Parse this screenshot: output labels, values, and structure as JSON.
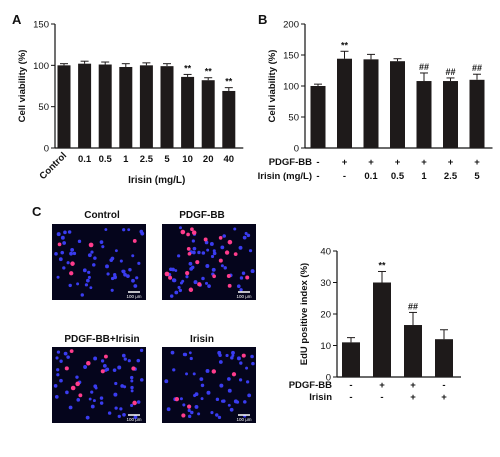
{
  "figure": {
    "panel_a_label": "A",
    "panel_b_label": "B",
    "panel_c_label": "C",
    "micro_titles": [
      "Control",
      "PDGF-BB",
      "PDGF-BB+Irisin",
      "Irisin"
    ],
    "scale_bar_text": "100 μm"
  },
  "colors": {
    "bar": "#1e1a1a",
    "axis": "#111111",
    "micro_bg": "#05051c",
    "nuclei_blue": "#3a3cf0",
    "edu_pink": "#ff3c8c"
  },
  "chart_data": [
    {
      "panel": "A",
      "type": "bar",
      "ylabel": "Cell viability (%)",
      "xlabel": "Irisin (mg/L)",
      "ylim": [
        0,
        150
      ],
      "yticks": [
        0,
        50,
        100,
        150
      ],
      "categories": [
        "Control",
        "0.1",
        "0.5",
        "1",
        "2.5",
        "5",
        "10",
        "20",
        "40"
      ],
      "values": [
        100,
        102,
        101,
        98,
        100,
        99,
        86,
        82,
        69
      ],
      "errors": [
        2,
        3,
        3,
        4,
        3,
        3,
        3,
        3,
        4
      ],
      "annotations": [
        "",
        "",
        "",
        "",
        "",
        "",
        "**",
        "**",
        "**"
      ]
    },
    {
      "panel": "B",
      "type": "bar",
      "ylabel": "Cell viability (%)",
      "ylim": [
        0,
        200
      ],
      "yticks": [
        0,
        50,
        100,
        150,
        200
      ],
      "values": [
        100,
        144,
        143,
        140,
        108,
        108,
        110
      ],
      "errors": [
        3,
        12,
        8,
        4,
        13,
        5,
        9
      ],
      "annotations": [
        "",
        "**",
        "",
        "",
        "##",
        "##",
        "##"
      ],
      "row_labels": [
        "PDGF-BB",
        "Irisin (mg/L)"
      ],
      "rows": [
        [
          "-",
          "+",
          "+",
          "+",
          "+",
          "+",
          "+"
        ],
        [
          "-",
          "-",
          "0.1",
          "0.5",
          "1",
          "2.5",
          "5"
        ]
      ]
    },
    {
      "panel": "C",
      "type": "bar",
      "ylabel": "EdU positive index (%)",
      "ylim": [
        0,
        40
      ],
      "yticks": [
        0,
        10,
        20,
        30,
        40
      ],
      "values": [
        11,
        30,
        16.5,
        12
      ],
      "errors": [
        1.5,
        3.5,
        4,
        3
      ],
      "annotations": [
        "",
        "**",
        "##",
        ""
      ],
      "row_labels": [
        "PDGF-BB",
        "Irisin"
      ],
      "rows": [
        [
          "-",
          "+",
          "+",
          "-"
        ],
        [
          "-",
          "-",
          "+",
          "+"
        ]
      ]
    }
  ]
}
